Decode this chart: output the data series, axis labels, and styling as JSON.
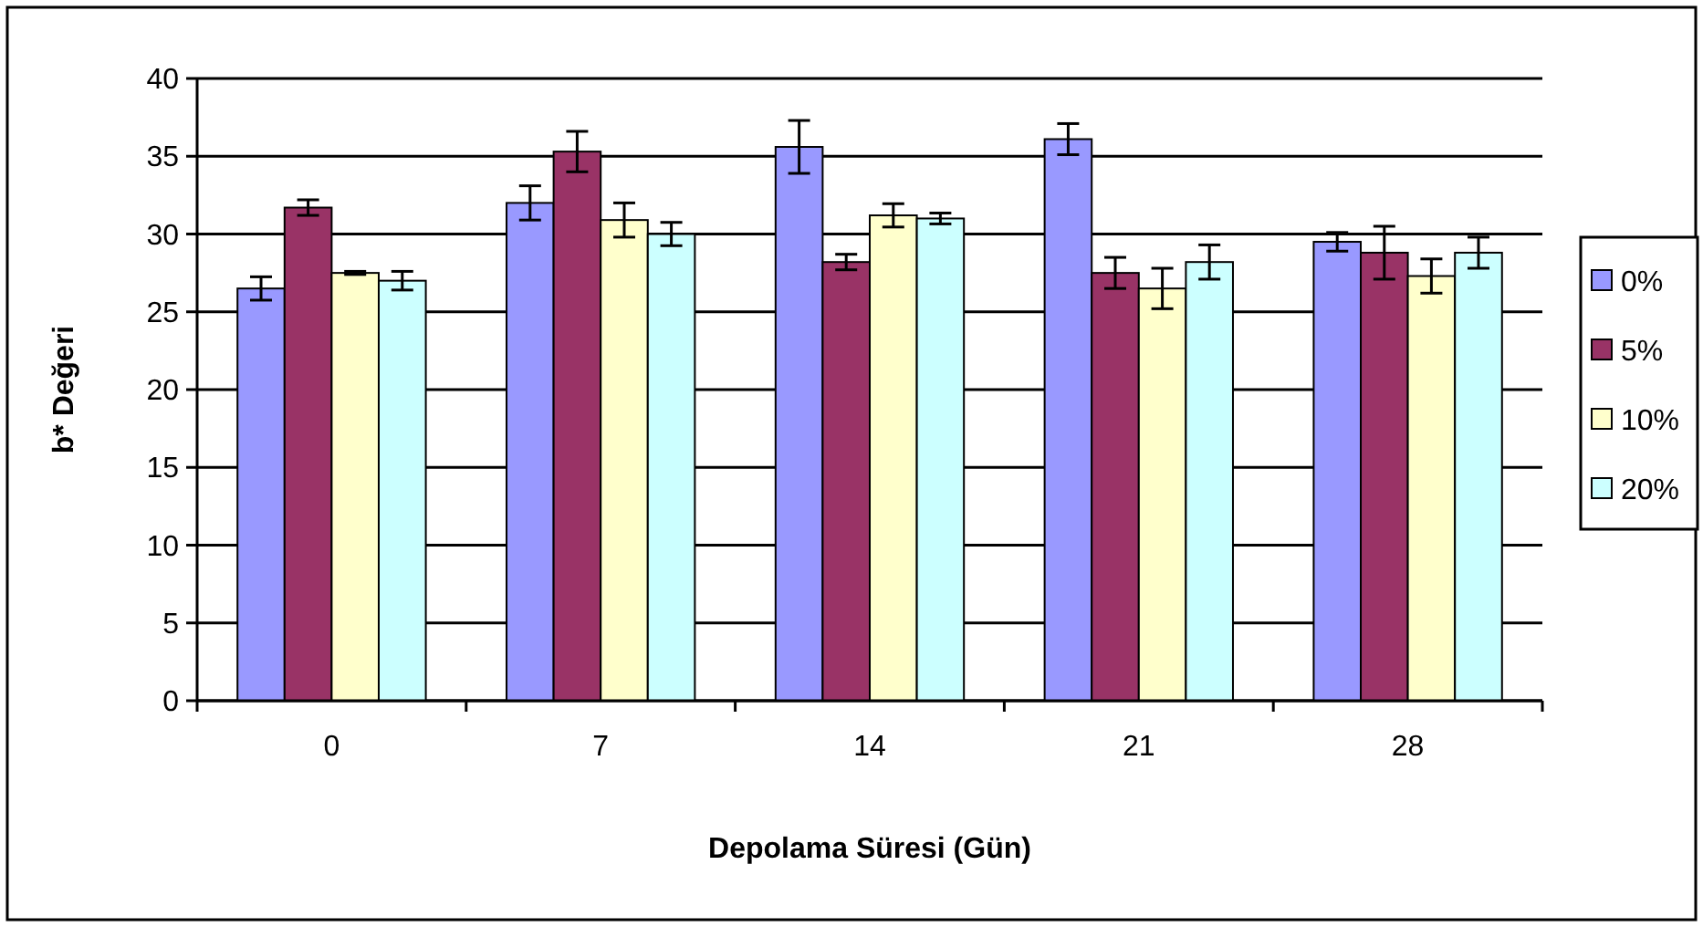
{
  "chart_data": {
    "type": "bar",
    "xlabel": "Depolama Süresi (Gün)",
    "ylabel": "b* Değeri",
    "categories": [
      "0",
      "7",
      "14",
      "21",
      "28"
    ],
    "series": [
      {
        "name": "0%",
        "color": "#9999ff",
        "values": [
          26.5,
          32.0,
          35.6,
          36.1,
          29.5
        ],
        "errors": [
          0.75,
          1.1,
          1.7,
          1.0,
          0.6
        ]
      },
      {
        "name": "5%",
        "color": "#993366",
        "values": [
          31.7,
          35.3,
          28.2,
          27.5,
          28.8
        ],
        "errors": [
          0.5,
          1.3,
          0.5,
          1.0,
          1.7
        ]
      },
      {
        "name": "10%",
        "color": "#ffffcc",
        "values": [
          27.5,
          30.9,
          31.2,
          26.5,
          27.3
        ],
        "errors": [
          0.1,
          1.1,
          0.75,
          1.3,
          1.1
        ]
      },
      {
        "name": "20%",
        "color": "#ccffff",
        "values": [
          27.0,
          30.0,
          31.0,
          28.2,
          28.8
        ],
        "errors": [
          0.6,
          0.75,
          0.35,
          1.1,
          1.0
        ]
      }
    ],
    "ylim": [
      0,
      40
    ],
    "yticks": [
      0,
      5,
      10,
      15,
      20,
      25,
      30,
      35,
      40
    ],
    "grid": "y",
    "legend": "right"
  }
}
